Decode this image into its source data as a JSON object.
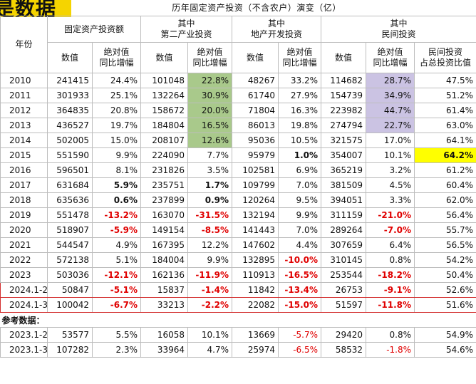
{
  "banner_text": "是数据",
  "title": "历年固定资产投资（不含农户）演变（亿）",
  "headers": {
    "year": "年份",
    "groups": [
      "固定资产投资额",
      "其中\n第二产业投资",
      "其中\n地产开发投资",
      "其中\n民间投资"
    ],
    "value": "数值",
    "yoy": "绝对值\n同比增幅",
    "private_share": "民间投资\n占总投资比值"
  },
  "rows": [
    {
      "year": "2010",
      "fixed_val": "241415",
      "fixed_yoy": "24.4%",
      "sec_val": "101048",
      "sec_yoy": "22.8%",
      "re_val": "48267",
      "re_yoy": "33.2%",
      "priv_val": "114682",
      "priv_yoy": "28.7%",
      "share": "47.5%"
    },
    {
      "year": "2011",
      "fixed_val": "301933",
      "fixed_yoy": "25.1%",
      "sec_val": "132264",
      "sec_yoy": "30.9%",
      "re_val": "61740",
      "re_yoy": "27.9%",
      "priv_val": "154739",
      "priv_yoy": "34.9%",
      "share": "51.2%"
    },
    {
      "year": "2012",
      "fixed_val": "364835",
      "fixed_yoy": "20.8%",
      "sec_val": "158672",
      "sec_yoy": "20.0%",
      "re_val": "71804",
      "re_yoy": "16.3%",
      "priv_val": "223982",
      "priv_yoy": "44.7%",
      "share": "61.4%"
    },
    {
      "year": "2013",
      "fixed_val": "436527",
      "fixed_yoy": "19.7%",
      "sec_val": "184804",
      "sec_yoy": "16.5%",
      "re_val": "86013",
      "re_yoy": "19.8%",
      "priv_val": "274794",
      "priv_yoy": "22.7%",
      "share": "63.0%"
    },
    {
      "year": "2014",
      "fixed_val": "502005",
      "fixed_yoy": "15.0%",
      "sec_val": "208107",
      "sec_yoy": "12.6%",
      "re_val": "95036",
      "re_yoy": "10.5%",
      "priv_val": "321575",
      "priv_yoy": "17.0%",
      "share": "64.1%"
    },
    {
      "year": "2015",
      "fixed_val": "551590",
      "fixed_yoy": "9.9%",
      "sec_val": "224090",
      "sec_yoy": "7.7%",
      "re_val": "95979",
      "re_yoy": "1.0%",
      "priv_val": "354007",
      "priv_yoy": "10.1%",
      "share": "64.2%"
    },
    {
      "year": "2016",
      "fixed_val": "596501",
      "fixed_yoy": "8.1%",
      "sec_val": "231826",
      "sec_yoy": "3.5%",
      "re_val": "102581",
      "re_yoy": "6.9%",
      "priv_val": "365219",
      "priv_yoy": "3.2%",
      "share": "61.2%"
    },
    {
      "year": "2017",
      "fixed_val": "631684",
      "fixed_yoy": "5.9%",
      "sec_val": "235751",
      "sec_yoy": "1.7%",
      "re_val": "109799",
      "re_yoy": "7.0%",
      "priv_val": "381509",
      "priv_yoy": "4.5%",
      "share": "60.4%"
    },
    {
      "year": "2018",
      "fixed_val": "635636",
      "fixed_yoy": "0.6%",
      "sec_val": "237899",
      "sec_yoy": "0.9%",
      "re_val": "120264",
      "re_yoy": "9.5%",
      "priv_val": "394051",
      "priv_yoy": "3.3%",
      "share": "62.0%"
    },
    {
      "year": "2019",
      "fixed_val": "551478",
      "fixed_yoy": "-13.2%",
      "sec_val": "163070",
      "sec_yoy": "-31.5%",
      "re_val": "132194",
      "re_yoy": "9.9%",
      "priv_val": "311159",
      "priv_yoy": "-21.0%",
      "share": "56.4%"
    },
    {
      "year": "2020",
      "fixed_val": "518907",
      "fixed_yoy": "-5.9%",
      "sec_val": "149154",
      "sec_yoy": "-8.5%",
      "re_val": "141443",
      "re_yoy": "7.0%",
      "priv_val": "289264",
      "priv_yoy": "-7.0%",
      "share": "55.7%"
    },
    {
      "year": "2021",
      "fixed_val": "544547",
      "fixed_yoy": "4.9%",
      "sec_val": "167395",
      "sec_yoy": "12.2%",
      "re_val": "147602",
      "re_yoy": "4.4%",
      "priv_val": "307659",
      "priv_yoy": "6.4%",
      "share": "56.5%"
    },
    {
      "year": "2022",
      "fixed_val": "572138",
      "fixed_yoy": "5.1%",
      "sec_val": "184004",
      "sec_yoy": "9.9%",
      "re_val": "132895",
      "re_yoy": "-10.0%",
      "priv_val": "310145",
      "priv_yoy": "0.8%",
      "share": "54.2%"
    },
    {
      "year": "2023",
      "fixed_val": "503036",
      "fixed_yoy": "-12.1%",
      "sec_val": "162136",
      "sec_yoy": "-11.9%",
      "re_val": "110913",
      "re_yoy": "-16.5%",
      "priv_val": "253544",
      "priv_yoy": "-18.2%",
      "share": "50.4%"
    },
    {
      "year": "2024.1-2",
      "fixed_val": "50847",
      "fixed_yoy": "-5.1%",
      "sec_val": "15837",
      "sec_yoy": "-1.4%",
      "re_val": "11842",
      "re_yoy": "-13.4%",
      "priv_val": "26753",
      "priv_yoy": "-9.1%",
      "share": "52.6%"
    },
    {
      "year": "2024.1-3",
      "fixed_val": "100042",
      "fixed_yoy": "-6.7%",
      "sec_val": "33213",
      "sec_yoy": "-2.2%",
      "re_val": "22082",
      "re_yoy": "-15.0%",
      "priv_val": "51597",
      "priv_yoy": "-11.8%",
      "share": "51.6%"
    }
  ],
  "reference_label": "参考数据：",
  "reference_rows": [
    {
      "year": "2023.1-2",
      "fixed_val": "53577",
      "fixed_yoy": "5.5%",
      "sec_val": "16058",
      "sec_yoy": "10.1%",
      "re_val": "13669",
      "re_yoy": "-5.7%",
      "priv_val": "29420",
      "priv_yoy": "0.8%",
      "share": "54.9%"
    },
    {
      "year": "2023.1-3",
      "fixed_val": "107282",
      "fixed_yoy": "2.3%",
      "sec_val": "33964",
      "sec_yoy": "4.7%",
      "re_val": "25974",
      "re_yoy": "-6.5%",
      "priv_val": "58532",
      "priv_yoy": "-1.8%",
      "share": "54.6%"
    }
  ],
  "colors": {
    "second_industry_highlight": "#a9c98b",
    "private_highlight": "#cbc3e3",
    "share_highlight": "#ffff00",
    "negative_text": "#e00000",
    "box_border": "#d32f2f"
  }
}
